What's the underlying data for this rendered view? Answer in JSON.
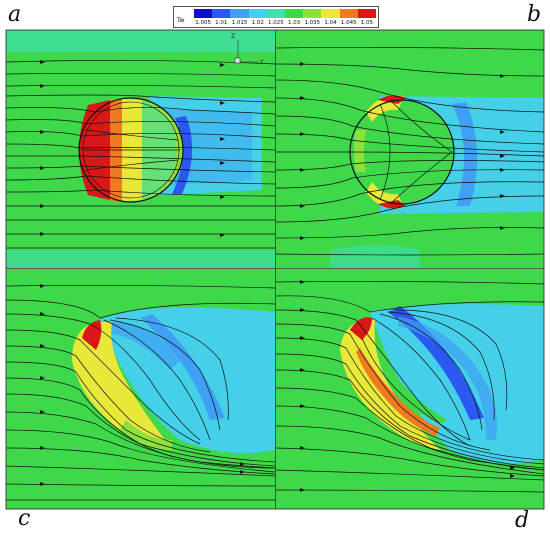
{
  "figure": {
    "panels": [
      {
        "label": "a"
      },
      {
        "label": "b"
      },
      {
        "label": "c"
      },
      {
        "label": "d"
      }
    ],
    "legend": {
      "variable": "Tw",
      "levels": [
        "1.005",
        "1.01",
        "1.015",
        "1.02",
        "1.025",
        "1.03",
        "1.035",
        "1.04",
        "1.045",
        "1.05"
      ],
      "colors": [
        "#1010c8",
        "#2a58f0",
        "#3fa0f5",
        "#44d0e8",
        "#3ee0b0",
        "#3fd84a",
        "#8ee03a",
        "#e8e83a",
        "#f07a20",
        "#d81818"
      ]
    },
    "axis_indicator": {
      "vertical": "Z",
      "horizontal": "Y"
    }
  }
}
